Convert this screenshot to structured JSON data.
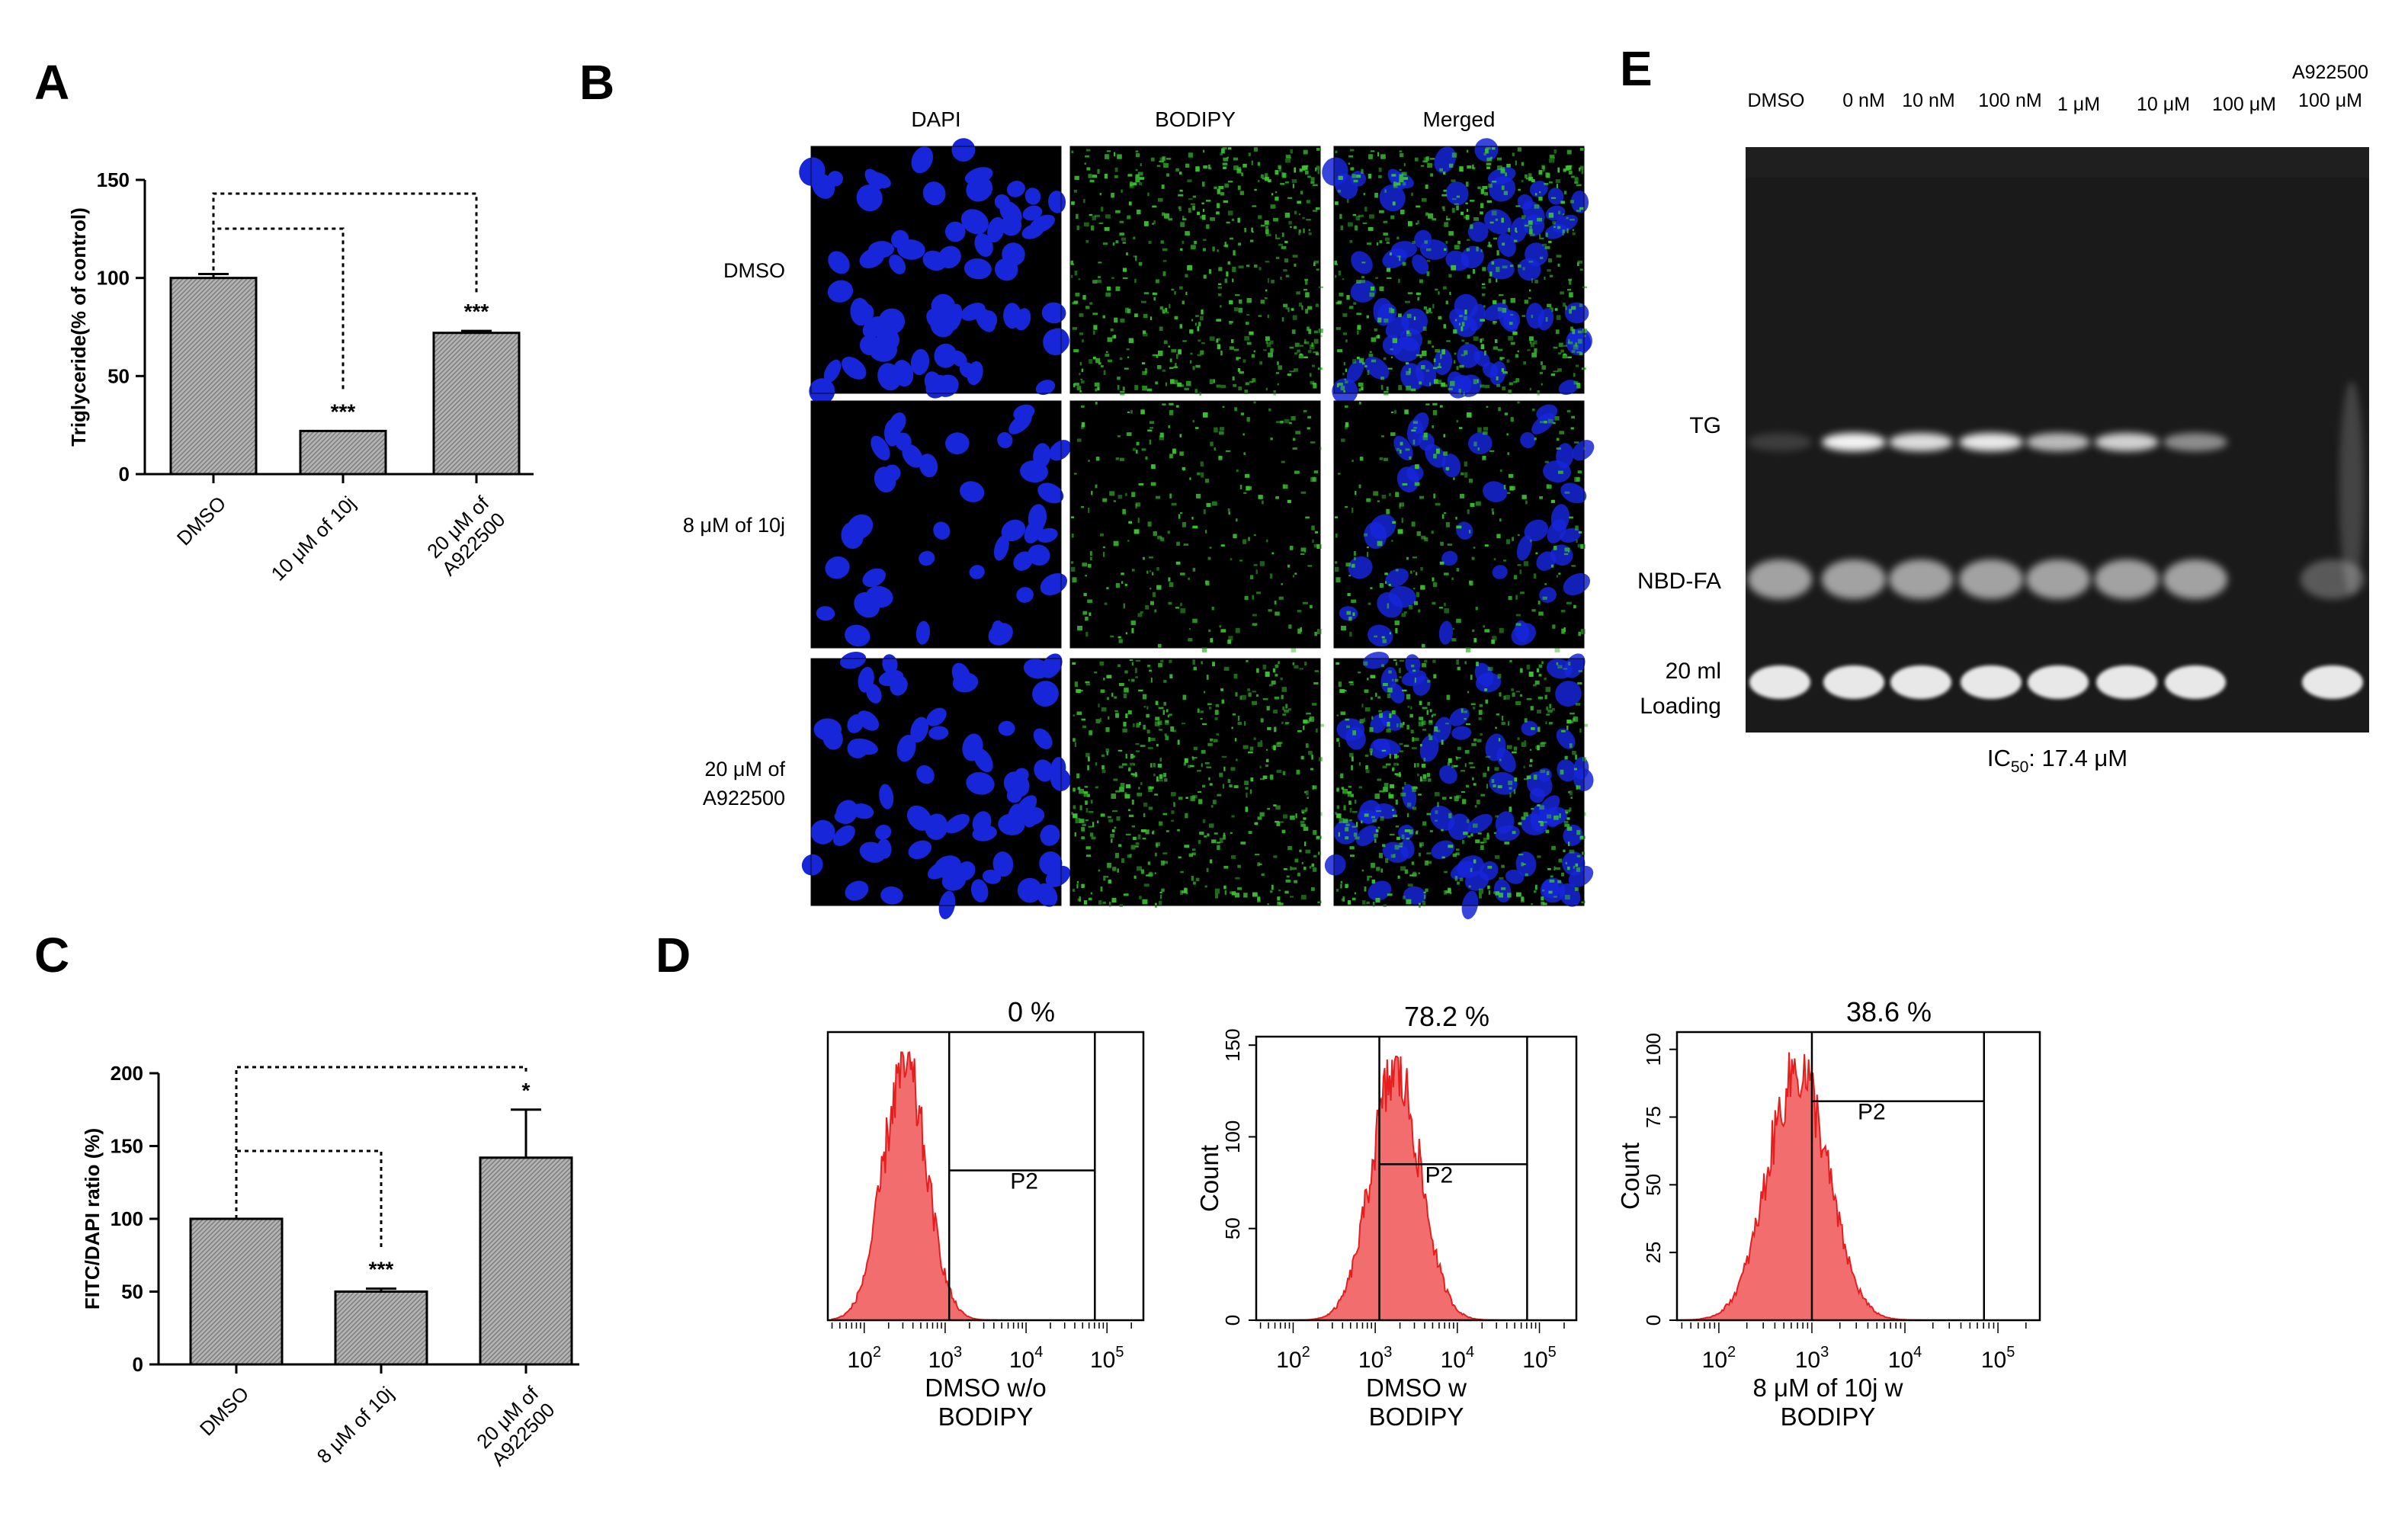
{
  "colors": {
    "bar_fill": "#a6a6a6",
    "dapi_blue": "#1626d8",
    "bodipy_green": "#39c42f",
    "histogram_red": "#f26d6d",
    "histogram_edge": "#e51e1e",
    "tlc_background": "#1a1a1a"
  },
  "panel_letters": {
    "a": "A",
    "b": "B",
    "c": "C",
    "d": "D",
    "e": "E"
  },
  "panel_a": {
    "chart_data": {
      "type": "bar",
      "ylabel": "Triglyceride(% of control)",
      "ylim": [
        0,
        150
      ],
      "yticks": [
        "0",
        "50",
        "100",
        "150"
      ],
      "categories": [
        "DMSO",
        "10 μM of 10j",
        "20 μM of A922500"
      ],
      "category_lines": [
        [
          "DMSO"
        ],
        [
          "10 μM of 10j"
        ],
        [
          "20 μM of",
          "A922500"
        ]
      ],
      "values": [
        100,
        22,
        72
      ],
      "errors": [
        2,
        0,
        1
      ],
      "significance": [
        "",
        "***",
        "***"
      ]
    }
  },
  "panel_b": {
    "columns": [
      "DAPI",
      "BODIPY",
      "Merged"
    ],
    "rows": [
      [
        "DMSO"
      ],
      [
        "8 μM of 10j"
      ],
      [
        "20 μM of",
        "A922500"
      ]
    ],
    "channels": [
      "dapi",
      "bodipy",
      "merged"
    ],
    "bodipy_intensity": [
      1.0,
      0.5,
      1.0
    ]
  },
  "panel_c": {
    "chart_data": {
      "type": "bar",
      "ylabel": "FITC/DAPI ratio (%)",
      "ylim": [
        0,
        200
      ],
      "yticks": [
        "0",
        "50",
        "100",
        "150",
        "200"
      ],
      "categories": [
        "DMSO",
        "8 μM of 10j",
        "20 μM of A922500"
      ],
      "category_lines": [
        [
          "DMSO"
        ],
        [
          "8 μM of 10j"
        ],
        [
          "20 μM of",
          "A922500"
        ]
      ],
      "values": [
        100,
        50,
        142
      ],
      "errors": [
        0,
        2,
        33
      ],
      "significance": [
        "",
        "***",
        "*"
      ]
    }
  },
  "panel_d": {
    "plots": [
      {
        "percent": "0 %",
        "gate": "P2",
        "xlabel": [
          "DMSO w/o",
          "BODIPY"
        ],
        "ylabel": "",
        "yticks": [],
        "peak_log": 2.5,
        "spread": 0.27,
        "gate_from_log": 3.05,
        "gate_to_log": 4.85,
        "gate_level": 0.52
      },
      {
        "percent": "78.2 %",
        "gate": "P2",
        "xlabel": [
          "DMSO w",
          "BODIPY"
        ],
        "ylabel": "Count",
        "yticks": [
          "0",
          "50",
          "100",
          "150"
        ],
        "peak_log": 3.25,
        "spread": 0.3,
        "gate_from_log": 3.05,
        "gate_to_log": 4.85,
        "gate_level": 0.55
      },
      {
        "percent": "38.6 %",
        "gate": "P2",
        "xlabel": [
          "8 μM of 10j w",
          "BODIPY"
        ],
        "ylabel": "Count",
        "yticks": [
          "0",
          "25",
          "50",
          "75",
          "100"
        ],
        "peak_log": 2.85,
        "spread": 0.32,
        "gate_from_log": 3.0,
        "gate_to_log": 4.85,
        "gate_level": 0.76
      }
    ],
    "xticks": [
      {
        "base": "10",
        "exp": "2"
      },
      {
        "base": "10",
        "exp": "3"
      },
      {
        "base": "10",
        "exp": "4"
      },
      {
        "base": "10",
        "exp": "5"
      }
    ]
  },
  "panel_e": {
    "lanes": [
      "DMSO",
      "0 nM",
      "10 nM",
      "100 nM",
      "1 μM",
      "10  μM",
      "100  μM",
      "A922500",
      "100  μM"
    ],
    "band_labels": {
      "tg": "TG",
      "fa": "NBD-FA",
      "loading_1": "20 ml",
      "loading_2": "Loading"
    },
    "tg_intensity": [
      0.15,
      0.95,
      0.85,
      0.9,
      0.7,
      0.8,
      0.5,
      0.0
    ],
    "ic50": {
      "prefix": "IC",
      "sub": "50",
      "suffix": ": 17.4 μM"
    }
  }
}
